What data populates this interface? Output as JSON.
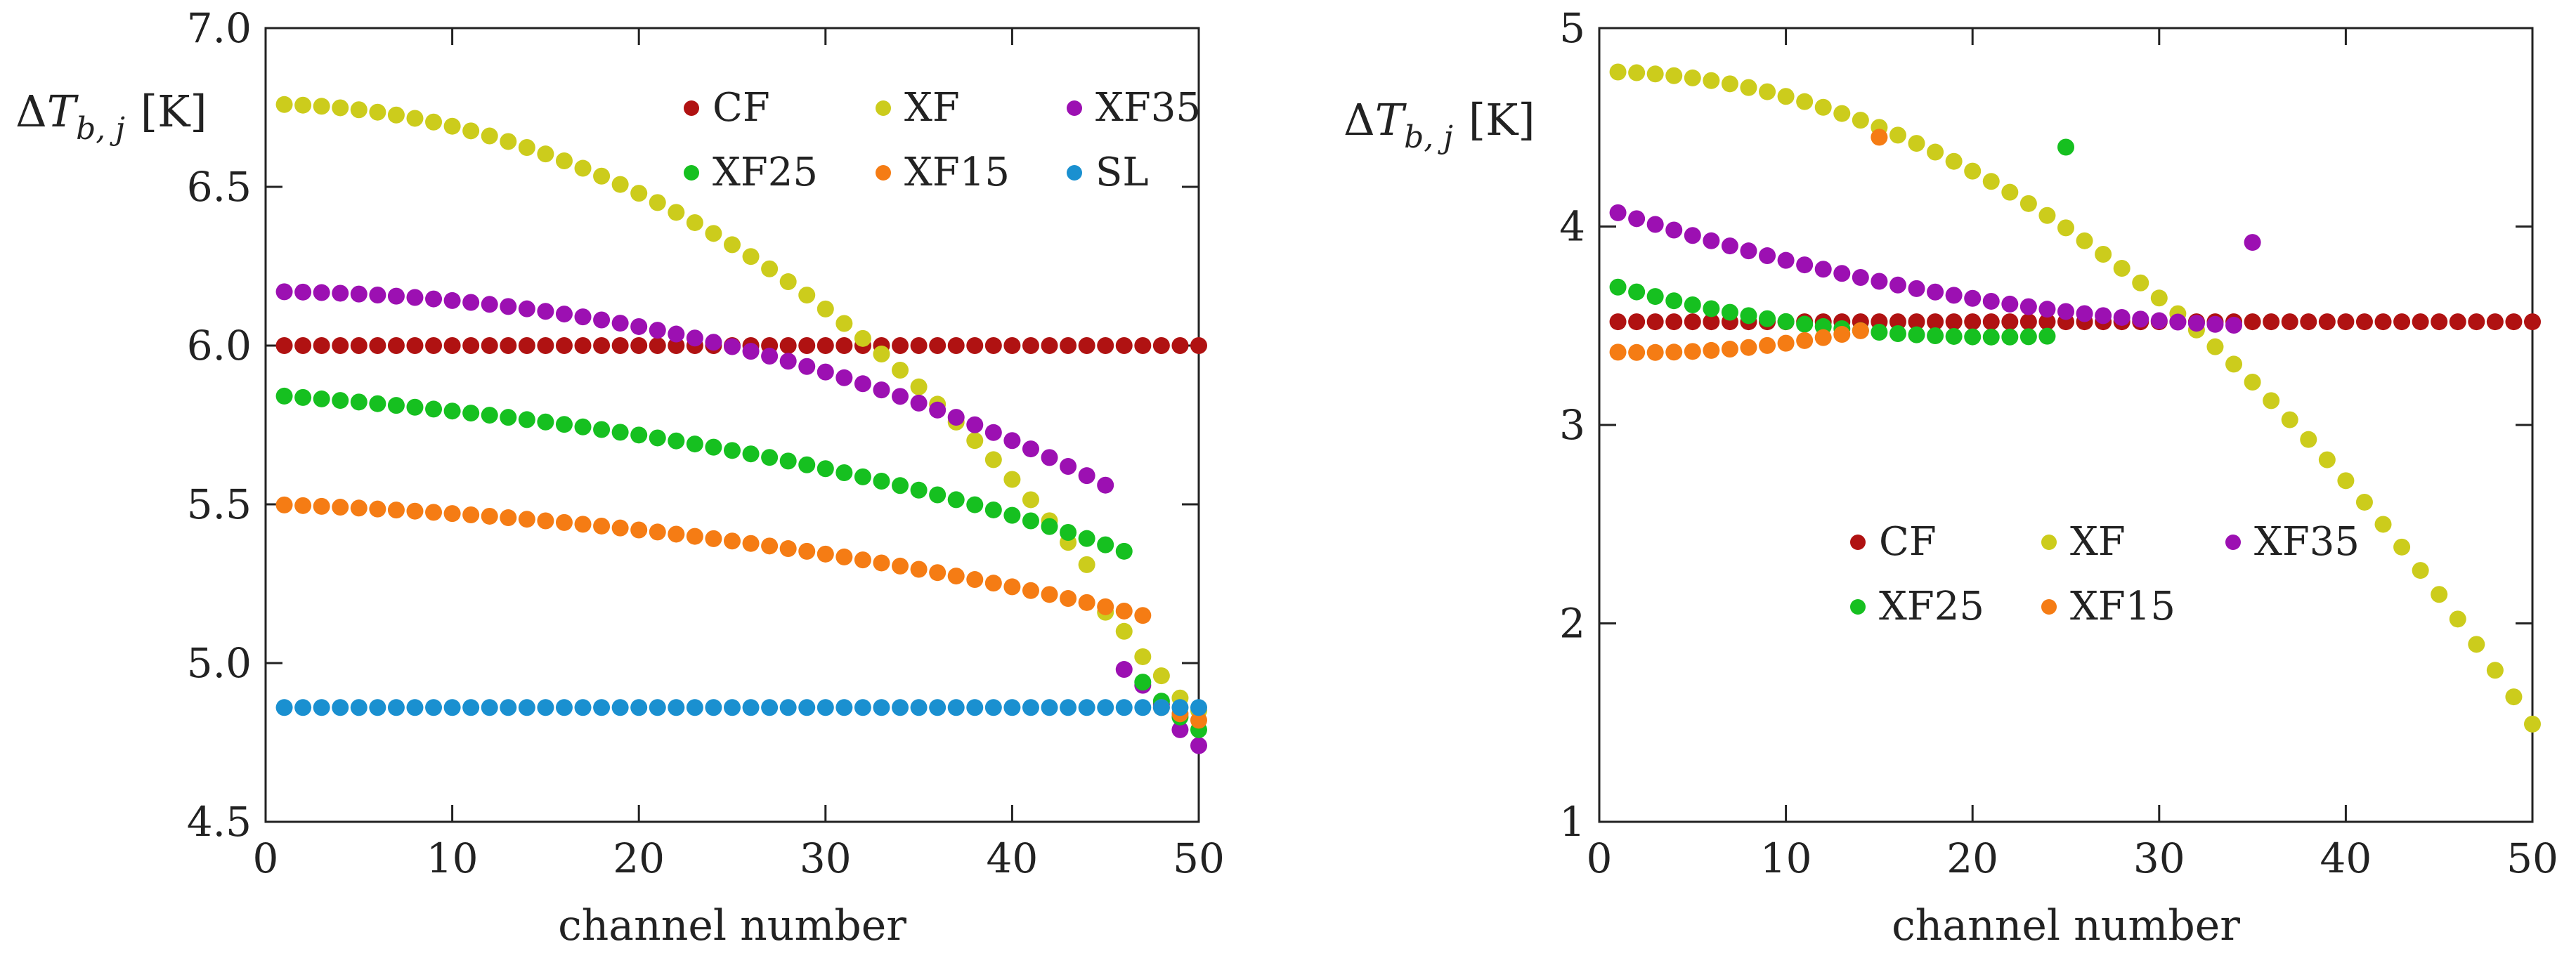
{
  "chart_data": [
    {
      "type": "scatter",
      "xlabel": "channel number",
      "ylabel_main": "ΔT",
      "ylabel_sub": "b, j",
      "ylabel_units": "[K]",
      "xlim": [
        0,
        50
      ],
      "ylim": [
        4.5,
        7.0
      ],
      "xticks": [
        0,
        10,
        20,
        30,
        40,
        50
      ],
      "yticks": [
        4.5,
        5.0,
        5.5,
        6.0,
        6.5,
        7.0
      ],
      "ytick_labels": [
        "4.5",
        "5.0",
        "5.5",
        "6.0",
        "6.5",
        "7.0"
      ],
      "legend_position": "top-right",
      "legend_columns": 3,
      "series": [
        {
          "name": "CF",
          "color": "#b01212",
          "model": "const",
          "params": [
            6.0
          ]
        },
        {
          "name": "XF",
          "color": "#cccc1c",
          "model": "poly",
          "params": [
            6.76,
            0.0,
            -0.000688,
            0.0,
            -3.15e-08
          ]
        },
        {
          "name": "XF35",
          "color": "#9c10b2",
          "model": "poly",
          "params": [
            6.17,
            -0.00025,
            -0.000255,
            0.0,
            -2e-08
          ]
        },
        {
          "name": "XF25",
          "color": "#16c020",
          "model": "poly",
          "params": [
            5.845,
            -0.004,
            -0.00011,
            0.0,
            -1.7e-08
          ]
        },
        {
          "name": "XF15",
          "color": "#f57c14",
          "model": "poly",
          "params": [
            5.5,
            -0.0018,
            -0.00011,
            0.0,
            -4.6e-09
          ]
        },
        {
          "name": "SL",
          "color": "#1a90d0",
          "model": "const_tail",
          "params": [
            4.86
          ]
        }
      ]
    },
    {
      "type": "scatter",
      "xlabel": "channel number",
      "ylabel_main": "ΔT",
      "ylabel_sub": "b, j",
      "ylabel_units": "[K]",
      "xlim": [
        0,
        50
      ],
      "ylim": [
        1,
        5
      ],
      "xticks": [
        0,
        10,
        20,
        30,
        40,
        50
      ],
      "yticks": [
        1,
        2,
        3,
        4,
        5
      ],
      "ytick_labels": [
        "1",
        "2",
        "3",
        "4",
        "5"
      ],
      "legend_position": "center-right",
      "legend_columns": 3,
      "series": [
        {
          "name": "CF",
          "color": "#b01212",
          "model": "const",
          "params": [
            3.52
          ]
        },
        {
          "name": "XF",
          "color": "#cccc1c",
          "model": "poly",
          "params": [
            4.78,
            0.0,
            -0.00124,
            0.0,
            -3e-08
          ]
        },
        {
          "name": "XF35",
          "color": "#9c10b2",
          "model": "quad_segment",
          "params": [
            4.1,
            -0.031,
            0.000395,
            34
          ],
          "extra": [
            [
              35,
              3.92
            ]
          ]
        },
        {
          "name": "XF25",
          "color": "#16c020",
          "model": "quad_segment",
          "params": [
            3.72,
            -0.026,
            0.00061,
            24
          ],
          "extra": [
            [
              25,
              4.4
            ]
          ]
        },
        {
          "name": "XF15",
          "color": "#f57c14",
          "model": "quad_segment",
          "params": [
            3.37,
            -0.004,
            0.00082,
            14
          ],
          "extra": [
            [
              15,
              4.45
            ]
          ]
        }
      ]
    }
  ]
}
